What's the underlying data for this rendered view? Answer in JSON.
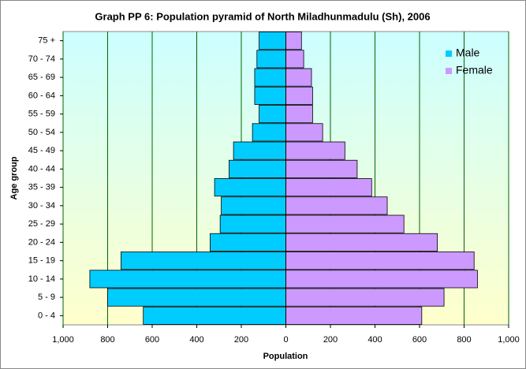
{
  "chart_data": {
    "type": "pyramid",
    "title": "Graph PP 6: Population pyramid of North Miladhunmadulu (Sh), 2006",
    "x_label": "Population",
    "y_label": "Age group",
    "categories": [
      "0 - 4",
      "5 - 9",
      "10 - 14",
      "15 - 19",
      "20 - 24",
      "25 - 29",
      "30 - 34",
      "35 - 39",
      "40 - 44",
      "45 - 49",
      "50 - 54",
      "55 - 59",
      "60 - 64",
      "65 - 69",
      "70 - 74",
      "75 +"
    ],
    "series": [
      {
        "name": "Male",
        "color": "#00ccff",
        "values": [
          -640,
          -800,
          -880,
          -740,
          -340,
          -295,
          -290,
          -320,
          -255,
          -235,
          -150,
          -120,
          -140,
          -140,
          -130,
          -120
        ]
      },
      {
        "name": "Female",
        "color": "#cc99ff",
        "values": [
          610,
          710,
          860,
          845,
          680,
          530,
          455,
          385,
          320,
          265,
          165,
          120,
          120,
          115,
          80,
          70
        ]
      }
    ],
    "xlim": [
      -1000,
      1000
    ],
    "xticks": [
      {
        "value": -1000,
        "label": "1,000"
      },
      {
        "value": -800,
        "label": "800"
      },
      {
        "value": -600,
        "label": "600"
      },
      {
        "value": -400,
        "label": "400"
      },
      {
        "value": -200,
        "label": "200"
      },
      0,
      200,
      400,
      600,
      800,
      {
        "value": 1000,
        "label": "1,000"
      }
    ],
    "grid": true,
    "legend": "top-right"
  }
}
